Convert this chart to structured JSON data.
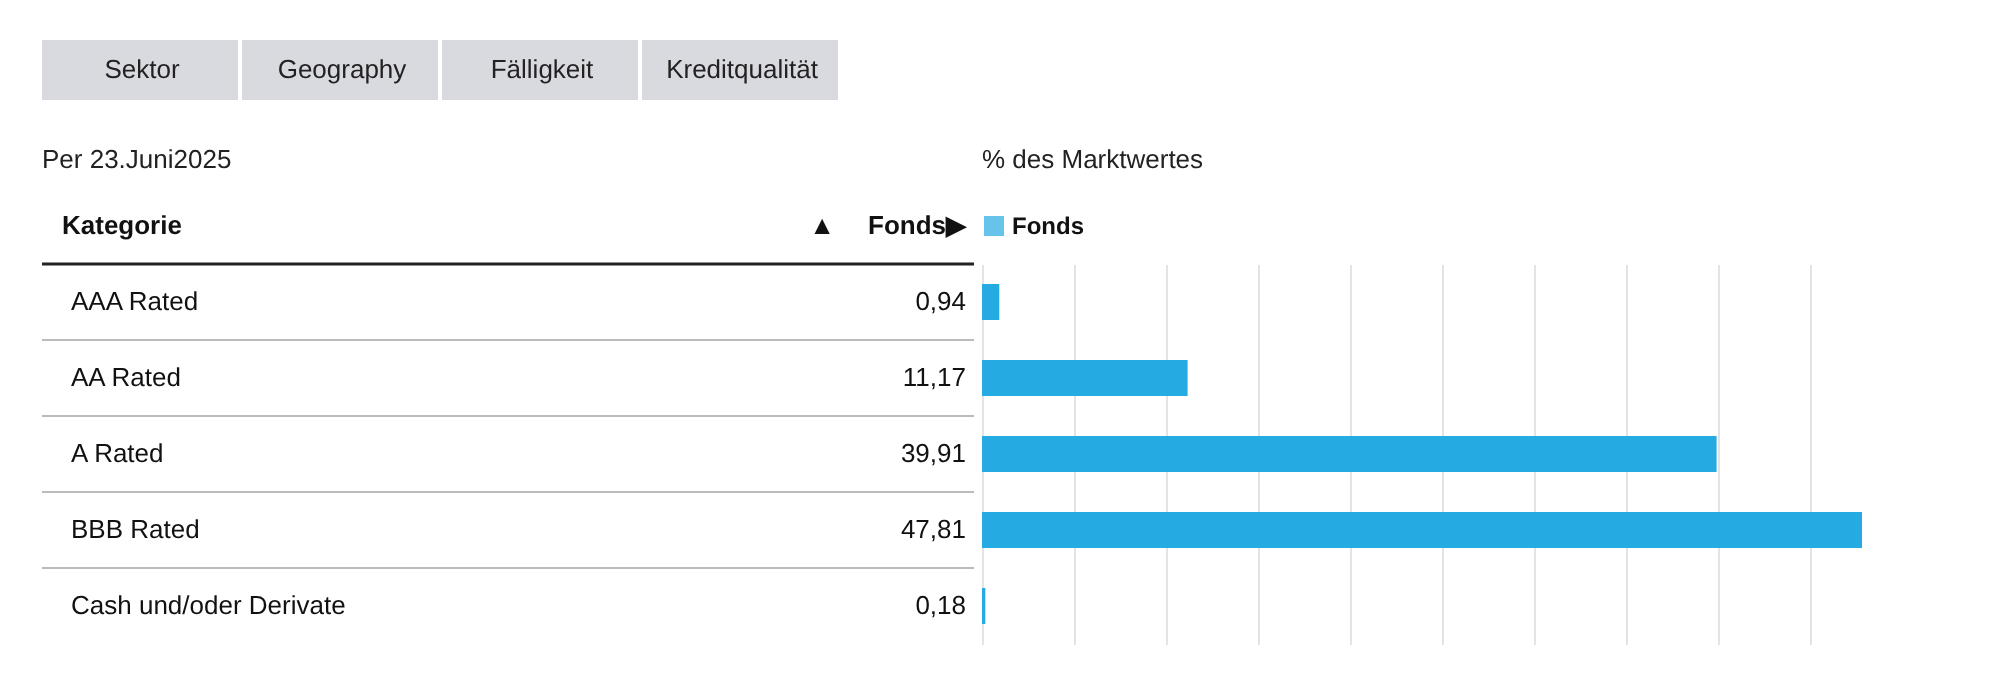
{
  "chart_data": {
    "type": "bar",
    "orientation": "horizontal",
    "title": "% des Marktwertes",
    "categories": [
      "AAA Rated",
      "AA Rated",
      "A Rated",
      "BBB Rated",
      "Cash und/oder Derivate"
    ],
    "series": [
      {
        "name": "Fonds",
        "color": "#25aae1",
        "values": [
          0.94,
          11.17,
          39.91,
          47.81,
          0.18
        ],
        "value_labels": [
          "0,94",
          "11,17",
          "39,91",
          "47,81",
          "0,18"
        ]
      }
    ],
    "xticks": [
      {
        "value": 0,
        "label": null
      },
      {
        "value": 5,
        "label": null
      },
      {
        "value": 10,
        "label": null
      },
      {
        "value": 15,
        "label": null
      },
      {
        "value": 20,
        "label": null
      },
      {
        "value": 25,
        "label": null
      },
      {
        "value": 30,
        "label": null
      },
      {
        "value": 35,
        "label": null
      },
      {
        "value": 40,
        "label": null
      },
      {
        "value": 45,
        "label": null
      }
    ],
    "grid": "x",
    "legend": "top left",
    "tick_labels": "y",
    "annotations": [
      "Sektor",
      "Geography",
      "Fälligkeit",
      "Kreditqualität",
      "Per 23.Juni2025",
      "Kategorie",
      "▲",
      "Fonds▶"
    ]
  }
}
